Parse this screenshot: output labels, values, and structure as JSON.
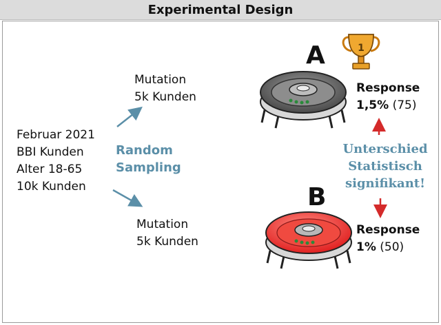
{
  "header": {
    "title": "Experimental Design"
  },
  "population": {
    "lines": [
      "Februar 2021",
      "BBI Kunden",
      "Alter 18-65",
      "10k Kunden"
    ]
  },
  "sampling": {
    "lines": [
      "Random",
      "Sampling"
    ]
  },
  "group_top": {
    "lines": [
      "Mutation",
      "5k Kunden"
    ]
  },
  "group_bottom": {
    "lines": [
      "Mutation",
      "5k Kunden"
    ]
  },
  "variant_a": {
    "label": "A",
    "response_label": "Response",
    "rate": "1,5%",
    "count": "(75)",
    "trophy_number": "1",
    "icons": [
      "trophy-icon",
      "robot-vacuum-gray-icon"
    ],
    "color": "#8a8a8a"
  },
  "variant_b": {
    "label": "B",
    "response_label": "Response",
    "rate": "1%",
    "count": "(50)",
    "icons": [
      "robot-vacuum-red-icon"
    ],
    "color": "#e63b3b"
  },
  "significance": {
    "lines": [
      "Unterschied",
      "Statistisch",
      "signifikant!"
    ]
  },
  "colors": {
    "accent": "#5b8fa8",
    "arrow_red": "#d42a2a",
    "trophy": "#e6a020"
  }
}
